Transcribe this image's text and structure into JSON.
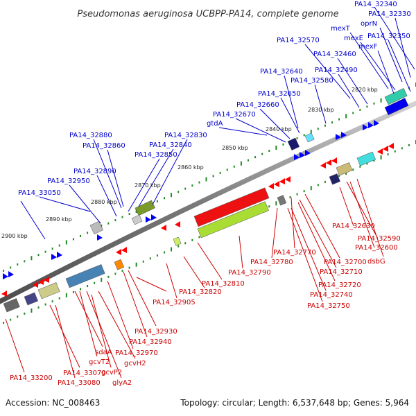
{
  "title": "Pseudomonas aeruginosa UCBPP-PA14, complete genome",
  "footer": {
    "accession": "Accession: NC_008463",
    "summary": "Topology: circular; Length: 6,537,648 bp; Genes: 5,964"
  },
  "kbp_marks": [
    "2820 kbp",
    "2830 kbp",
    "2840 kbp",
    "2850 kbp",
    "2860 kbp",
    "2870 kbp",
    "2880 kbp",
    "2890 kbp",
    "2900 kbp"
  ],
  "forward_labels": [
    "PA14_32340",
    "PA14_32330",
    "oprN",
    "mexT",
    "PA14_32350",
    "mexE",
    "PA14_32570",
    "mexF",
    "PA14_32460",
    "PA14_32490",
    "PA14_32640",
    "PA14_32580",
    "PA14_32650",
    "PA14_32660",
    "PA14_32670",
    "gtdA",
    "PA14_32830",
    "PA14_32880",
    "PA14_32860",
    "PA14_32840",
    "PA14_32850",
    "PA14_32890",
    "PA14_32950",
    "PA14_33050"
  ],
  "reverse_labels": [
    "PA14_32630",
    "PA14_32590",
    "PA14_32600",
    "dsbG",
    "PA14_32770",
    "PA14_32780",
    "PA14_32700",
    "PA14_32790",
    "PA14_32710",
    "PA14_32810",
    "PA14_32720",
    "PA14_32820",
    "PA14_32740",
    "PA14_32750",
    "PA14_32905",
    "PA14_32930",
    "PA14_32940",
    "sdaA",
    "gcvT2",
    "PA14_32970",
    "gcvH2",
    "gcvP2",
    "glyA2",
    "PA14_33200",
    "PA14_33070",
    "PA14_33080"
  ],
  "colors": {
    "forward_label": "#0000cc",
    "reverse_label": "#cc0000",
    "forward_gene": "#0000ff",
    "reverse_gene": "#ff0000",
    "backbone": "#808080",
    "tick": "#228b22"
  }
}
